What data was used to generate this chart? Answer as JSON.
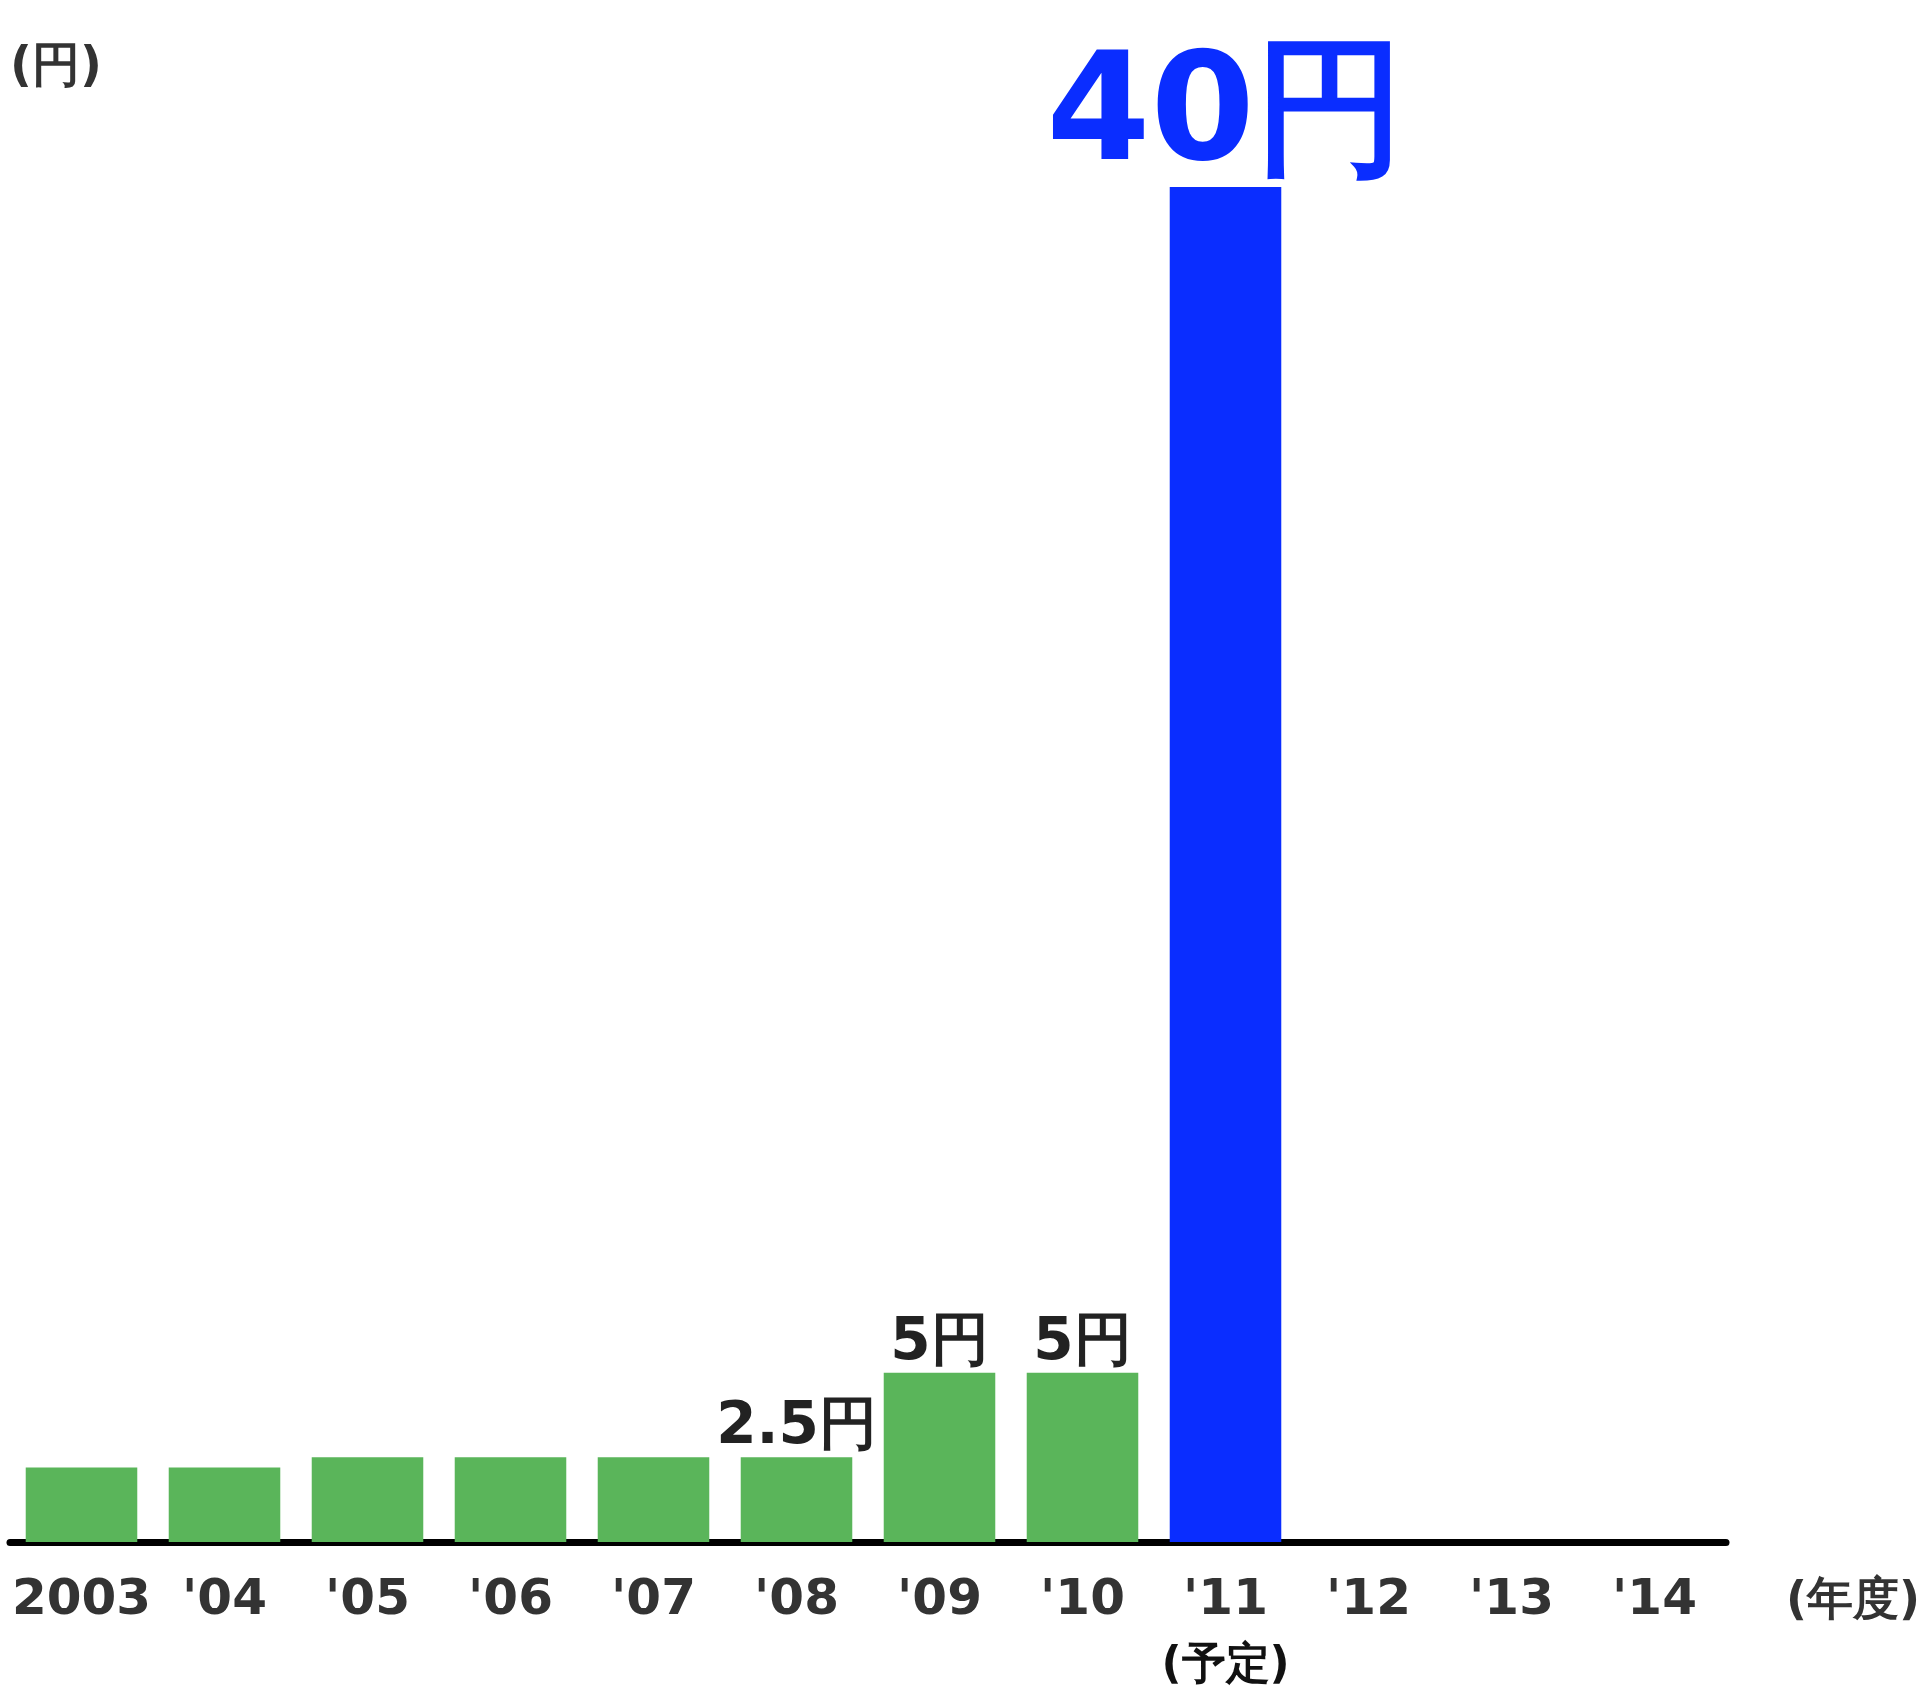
{
  "chart_data": {
    "type": "bar",
    "ylabel": "(円)",
    "xlabel": "(年度)",
    "categories": [
      "2003",
      "'04",
      "'05",
      "'06",
      "'07",
      "'08",
      "'09",
      "'10",
      "'11",
      "'12",
      "'13",
      "'14"
    ],
    "values": [
      2.2,
      2.2,
      2.5,
      2.5,
      2.5,
      2.5,
      5,
      5,
      40,
      null,
      null,
      null
    ],
    "colors": [
      "#5ab55a",
      "#5ab55a",
      "#5ab55a",
      "#5ab55a",
      "#5ab55a",
      "#5ab55a",
      "#5ab55a",
      "#5ab55a",
      "#0a2dff",
      "#5ab55a",
      "#5ab55a",
      "#5ab55a"
    ],
    "value_labels": [
      null,
      null,
      null,
      null,
      null,
      "2.5円",
      "5円",
      "5円",
      "40円",
      null,
      null,
      null
    ],
    "annotations": [
      "(予定)"
    ],
    "grid": false
  }
}
